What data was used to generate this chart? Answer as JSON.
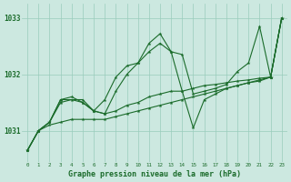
{
  "xlabel": "Graphe pression niveau de la mer (hPa)",
  "bg_color": "#cce8e0",
  "grid_color": "#99ccbb",
  "line_color": "#1a6b2a",
  "xlim": [
    -0.5,
    23.5
  ],
  "ylim": [
    1030.45,
    1033.25
  ],
  "yticks": [
    1031,
    1032,
    1033
  ],
  "xtick_labels": [
    "0",
    "1",
    "2",
    "3",
    "4",
    "5",
    "6",
    "7",
    "8",
    "9",
    "10",
    "11",
    "12",
    "13",
    "14",
    "15",
    "16",
    "17",
    "18",
    "19",
    "20",
    "21",
    "22",
    "23"
  ],
  "line1_x": [
    0,
    1,
    2,
    3,
    4,
    5,
    6,
    7,
    8,
    9,
    10,
    11,
    12,
    13,
    14,
    15,
    16,
    17,
    18,
    19,
    20,
    21,
    22,
    23
  ],
  "line1_y": [
    1030.65,
    1031.0,
    1031.1,
    1031.15,
    1031.2,
    1031.2,
    1031.2,
    1031.2,
    1031.25,
    1031.3,
    1031.35,
    1031.4,
    1031.45,
    1031.5,
    1031.55,
    1031.6,
    1031.65,
    1031.7,
    1031.75,
    1031.8,
    1031.85,
    1031.9,
    1031.95,
    1033.0
  ],
  "line2_x": [
    0,
    1,
    2,
    3,
    4,
    5,
    6,
    7,
    8,
    9,
    10,
    11,
    12,
    13,
    14,
    15,
    16,
    17,
    18,
    19,
    20,
    21,
    22,
    23
  ],
  "line2_y": [
    1030.65,
    1031.0,
    1031.15,
    1031.5,
    1031.55,
    1031.5,
    1031.35,
    1031.3,
    1031.35,
    1031.45,
    1031.5,
    1031.6,
    1031.65,
    1031.7,
    1031.7,
    1031.75,
    1031.8,
    1031.82,
    1031.85,
    1031.88,
    1031.9,
    1031.93,
    1031.95,
    1033.0
  ],
  "line3_x": [
    0,
    1,
    2,
    3,
    4,
    5,
    6,
    7,
    8,
    9,
    10,
    11,
    12,
    13,
    14,
    15,
    16,
    17,
    18,
    19,
    20,
    21,
    22,
    23
  ],
  "line3_y": [
    1030.65,
    1031.0,
    1031.15,
    1031.55,
    1031.6,
    1031.5,
    1031.35,
    1031.55,
    1031.95,
    1032.15,
    1032.2,
    1032.4,
    1032.55,
    1032.4,
    1031.7,
    1031.05,
    1031.55,
    1031.65,
    1031.75,
    1031.8,
    1031.85,
    1031.88,
    1031.95,
    1033.0
  ],
  "line4_x": [
    0,
    1,
    2,
    3,
    5,
    6,
    7,
    8,
    9,
    10,
    11,
    12,
    13,
    14,
    15,
    16,
    17,
    18,
    19,
    20,
    21,
    22,
    23
  ],
  "line4_y": [
    1030.65,
    1031.0,
    1031.15,
    1031.55,
    1031.55,
    1031.35,
    1031.3,
    1031.7,
    1032.0,
    1032.2,
    1032.55,
    1032.72,
    1032.4,
    1032.35,
    1031.65,
    1031.7,
    1031.75,
    1031.82,
    1032.05,
    1032.2,
    1032.85,
    1031.95,
    1033.0
  ]
}
